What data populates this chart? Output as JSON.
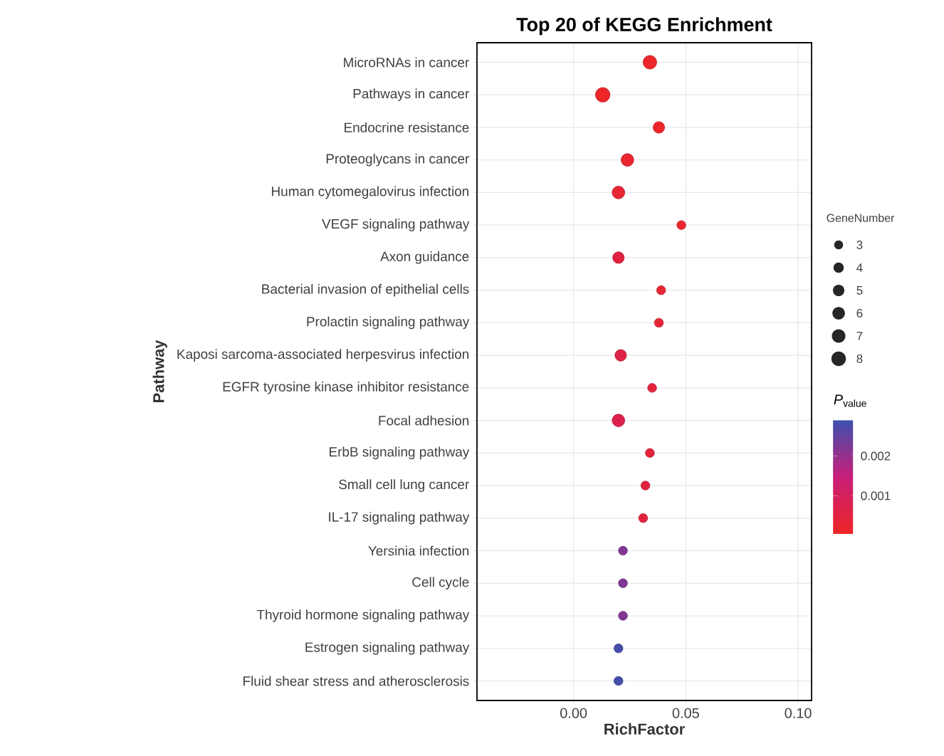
{
  "chart_data": {
    "type": "bubble",
    "orientation": "horizontal",
    "title": "Top 20 of KEGG Enrichment",
    "xlabel": "RichFactor",
    "ylabel": "Pathway",
    "categories": [
      "MicroRNAs in cancer",
      "Pathways in cancer",
      "Endocrine resistance",
      "Proteoglycans in cancer",
      "Human cytomegalovirus infection",
      "VEGF signaling pathway",
      "Axon guidance",
      "Bacterial invasion of epithelial cells",
      "Prolactin signaling pathway",
      "Kaposi sarcoma-associated herpesvirus infection",
      "EGFR tyrosine kinase inhibitor resistance",
      "Focal adhesion",
      "ErbB signaling pathway",
      "Small cell lung cancer",
      "IL-17 signaling pathway",
      "Yersinia infection",
      "Cell cycle",
      "Thyroid hormone signaling pathway",
      "Estrogen signaling pathway",
      "Fluid shear stress and atherosclerosis"
    ],
    "values": [
      0.034,
      0.013,
      0.038,
      0.024,
      0.02,
      0.048,
      0.02,
      0.039,
      0.038,
      0.021,
      0.035,
      0.02,
      0.034,
      0.032,
      0.031,
      0.022,
      0.022,
      0.022,
      0.02,
      0.02
    ],
    "sizes": [
      7,
      8,
      5,
      6,
      6,
      3,
      5,
      3,
      3,
      5,
      3,
      6,
      3,
      3,
      3,
      3,
      3,
      3,
      3,
      3
    ],
    "cvalues": [
      0.0001,
      0.0001,
      0.0001,
      0.0002,
      0.0003,
      0.0002,
      0.0005,
      0.0003,
      0.0003,
      0.0006,
      0.0004,
      0.0007,
      0.0004,
      0.0005,
      0.0005,
      0.0022,
      0.0022,
      0.0022,
      0.0028,
      0.0028
    ],
    "size_legend": [
      3,
      4,
      5,
      6,
      7,
      8
    ],
    "legend_title": "GeneNumber",
    "clabel": "*P*$_{value}$",
    "clim": [
      4e-05,
      0.0029
    ],
    "cticks": [
      0.001,
      0.002
    ],
    "xlim": [
      -0.043,
      0.106
    ],
    "xticks": [
      {
        "value": 0,
        "label": "0.00"
      },
      {
        "value": 0.05,
        "label": "0.05"
      },
      {
        "value": 0.1,
        "label": "0.10"
      }
    ],
    "grid": true,
    "marker": "circle"
  }
}
